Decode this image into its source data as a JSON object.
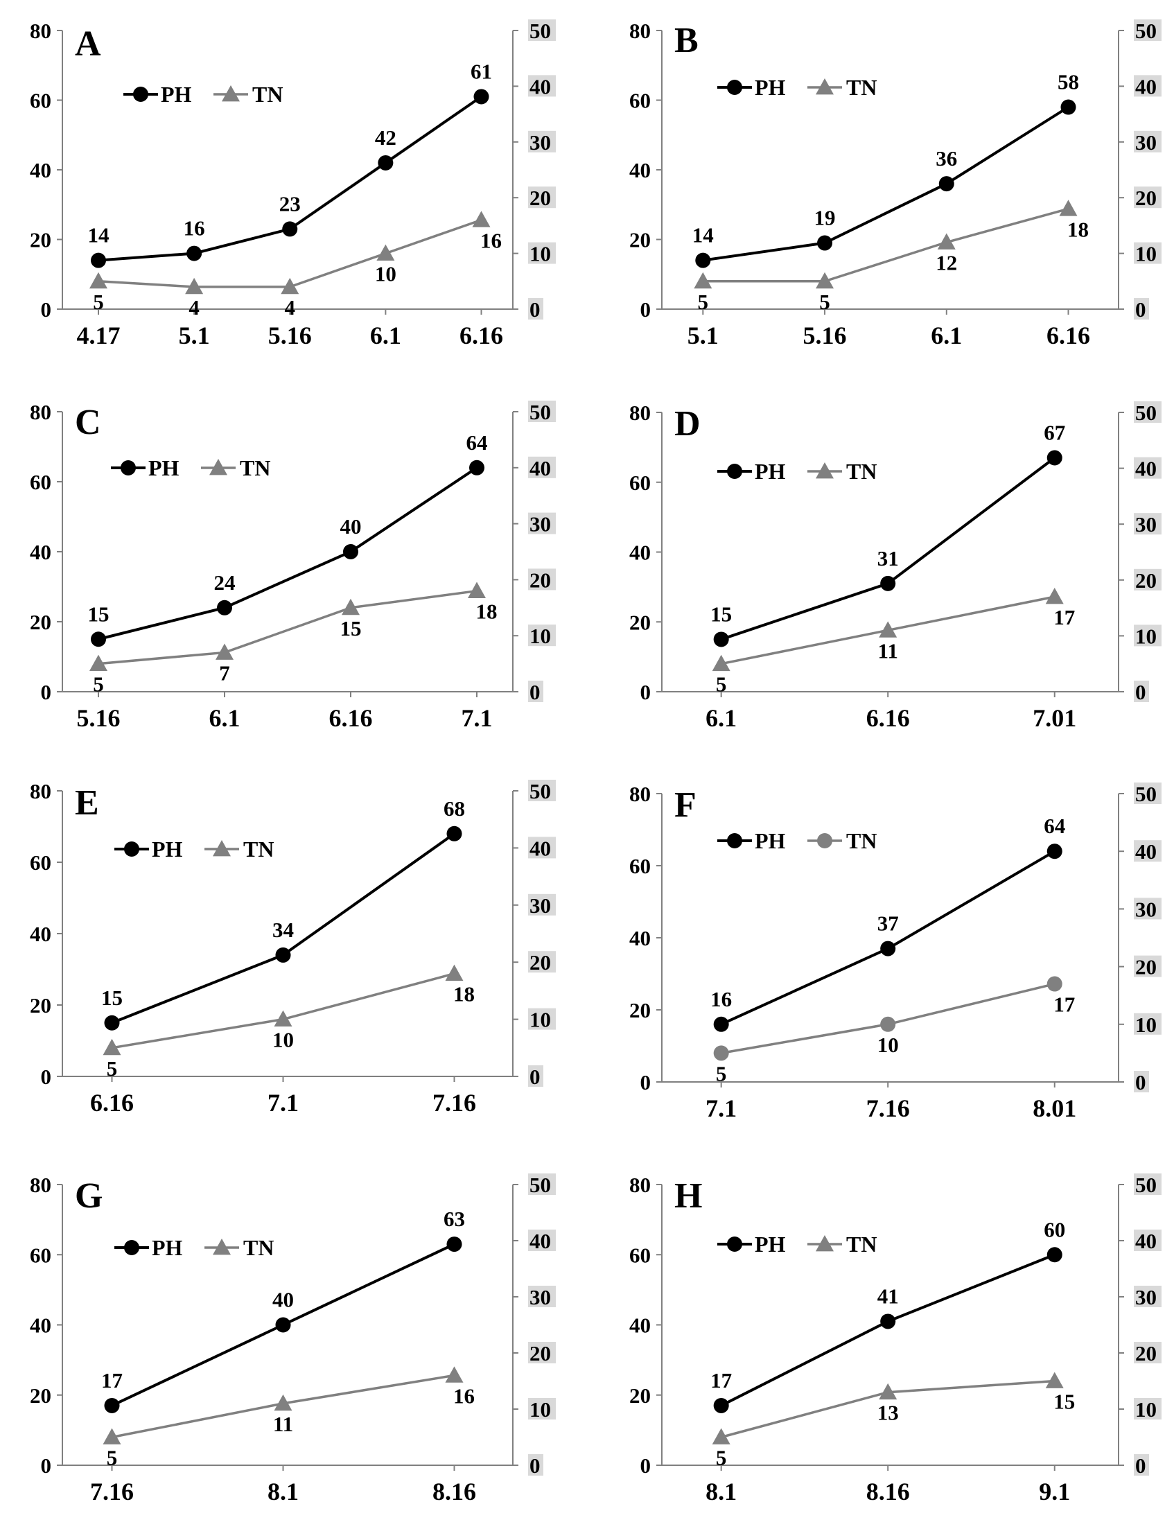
{
  "colors": {
    "ph": "#000000",
    "tn": "#808080",
    "right_tick_bg": "#d9d9d9",
    "axis": "#808080"
  },
  "legend": {
    "ph": "PH",
    "tn": "TN"
  },
  "chart_data": [
    {
      "type": "line",
      "panel": "A",
      "categories": [
        "4.17",
        "5.1",
        "5.16",
        "6.1",
        "6.16"
      ],
      "series": [
        {
          "name": "PH",
          "axis": "left",
          "marker": "circle",
          "values": [
            14,
            16,
            23,
            42,
            61
          ],
          "labels": [
            "14",
            "16",
            "23",
            "42",
            "61"
          ]
        },
        {
          "name": "TN",
          "axis": "right",
          "marker": "triangle",
          "values": [
            5,
            4,
            4,
            10,
            16
          ],
          "labels": [
            "5",
            "4",
            "4",
            "10",
            "16"
          ]
        }
      ],
      "ylim_left": [
        0,
        80
      ],
      "yticks_left": [
        "0",
        "20",
        "40",
        "60",
        "80"
      ],
      "ylim_right": [
        0,
        50
      ],
      "yticks_right": [
        "0",
        "10",
        "20",
        "30",
        "40",
        "50"
      ],
      "legend_position": "top-left"
    },
    {
      "type": "line",
      "panel": "B",
      "categories": [
        "5.1",
        "5.16",
        "6.1",
        "6.16"
      ],
      "series": [
        {
          "name": "PH",
          "axis": "left",
          "marker": "circle",
          "values": [
            14,
            19,
            36,
            58
          ],
          "labels": [
            "14",
            "19",
            "36",
            "58"
          ]
        },
        {
          "name": "TN",
          "axis": "right",
          "marker": "triangle",
          "values": [
            5,
            5,
            12,
            18
          ],
          "labels": [
            "5",
            "5",
            "12",
            "18"
          ]
        }
      ],
      "ylim_left": [
        0,
        80
      ],
      "yticks_left": [
        "0",
        "20",
        "40",
        "60",
        "80"
      ],
      "ylim_right": [
        0,
        50
      ],
      "yticks_right": [
        "0",
        "10",
        "20",
        "30",
        "40",
        "50"
      ],
      "legend_position": "top-left"
    },
    {
      "type": "line",
      "panel": "C",
      "categories": [
        "5.16",
        "6.1",
        "6.16",
        "7.1"
      ],
      "series": [
        {
          "name": "PH",
          "axis": "left",
          "marker": "circle",
          "values": [
            15,
            24,
            40,
            64
          ],
          "labels": [
            "15",
            "24",
            "40",
            "64"
          ]
        },
        {
          "name": "TN",
          "axis": "right",
          "marker": "triangle",
          "values": [
            5,
            7,
            15,
            18
          ],
          "labels": [
            "5",
            "7",
            "15",
            "18"
          ]
        }
      ],
      "ylim_left": [
        0,
        80
      ],
      "yticks_left": [
        "0",
        "20",
        "40",
        "60",
        "80"
      ],
      "ylim_right": [
        0,
        50
      ],
      "yticks_right": [
        "0",
        "10",
        "20",
        "30",
        "40",
        "50"
      ],
      "legend_position": "top-left"
    },
    {
      "type": "line",
      "panel": "D",
      "categories": [
        "6.1",
        "6.16",
        "7.01"
      ],
      "series": [
        {
          "name": "PH",
          "axis": "left",
          "marker": "circle",
          "values": [
            15,
            31,
            67
          ],
          "labels": [
            "15",
            "31",
            "67"
          ]
        },
        {
          "name": "TN",
          "axis": "right",
          "marker": "triangle",
          "values": [
            5,
            11,
            17
          ],
          "labels": [
            "5",
            "11",
            "17"
          ]
        }
      ],
      "ylim_left": [
        0,
        80
      ],
      "yticks_left": [
        "0",
        "20",
        "40",
        "60",
        "80"
      ],
      "ylim_right": [
        0,
        50
      ],
      "yticks_right": [
        "0",
        "10",
        "20",
        "30",
        "40",
        "50"
      ],
      "legend_position": "top-left"
    },
    {
      "type": "line",
      "panel": "E",
      "categories": [
        "6.16",
        "7.1",
        "7.16"
      ],
      "series": [
        {
          "name": "PH",
          "axis": "left",
          "marker": "circle",
          "values": [
            15,
            34,
            68
          ],
          "labels": [
            "15",
            "34",
            "68"
          ]
        },
        {
          "name": "TN",
          "axis": "right",
          "marker": "triangle",
          "values": [
            5,
            10,
            18
          ],
          "labels": [
            "5",
            "10",
            "18"
          ]
        }
      ],
      "ylim_left": [
        0,
        80
      ],
      "yticks_left": [
        "0",
        "20",
        "40",
        "60",
        "80"
      ],
      "ylim_right": [
        0,
        50
      ],
      "yticks_right": [
        "0",
        "10",
        "20",
        "30",
        "40",
        "50"
      ],
      "legend_position": "top-left"
    },
    {
      "type": "line",
      "panel": "F",
      "categories": [
        "7.1",
        "7.16",
        "8.01"
      ],
      "series": [
        {
          "name": "PH",
          "axis": "left",
          "marker": "circle",
          "values": [
            16,
            37,
            64
          ],
          "labels": [
            "16",
            "37",
            "64"
          ]
        },
        {
          "name": "TN",
          "axis": "right",
          "marker": "circle",
          "values": [
            5,
            10,
            17
          ],
          "labels": [
            "5",
            "10",
            "17"
          ]
        }
      ],
      "ylim_left": [
        0,
        80
      ],
      "yticks_left": [
        "0",
        "20",
        "40",
        "60",
        "80"
      ],
      "ylim_right": [
        0,
        50
      ],
      "yticks_right": [
        "0",
        "10",
        "20",
        "30",
        "40",
        "50"
      ],
      "legend_position": "top-left"
    },
    {
      "type": "line",
      "panel": "G",
      "categories": [
        "7.16",
        "8.1",
        "8.16"
      ],
      "series": [
        {
          "name": "PH",
          "axis": "left",
          "marker": "circle",
          "values": [
            17,
            40,
            63
          ],
          "labels": [
            "17",
            "40",
            "63"
          ]
        },
        {
          "name": "TN",
          "axis": "right",
          "marker": "triangle",
          "values": [
            5,
            11,
            16
          ],
          "labels": [
            "5",
            "11",
            "16"
          ]
        }
      ],
      "ylim_left": [
        0,
        80
      ],
      "yticks_left": [
        "0",
        "20",
        "40",
        "60",
        "80"
      ],
      "ylim_right": [
        0,
        50
      ],
      "yticks_right": [
        "0",
        "10",
        "20",
        "30",
        "40",
        "50"
      ],
      "legend_position": "top-left"
    },
    {
      "type": "line",
      "panel": "H",
      "categories": [
        "8.1",
        "8.16",
        "9.1"
      ],
      "series": [
        {
          "name": "PH",
          "axis": "left",
          "marker": "circle",
          "values": [
            17,
            41,
            60
          ],
          "labels": [
            "17",
            "41",
            "60"
          ]
        },
        {
          "name": "TN",
          "axis": "right",
          "marker": "triangle",
          "values": [
            5,
            13,
            15
          ],
          "labels": [
            "5",
            "13",
            "15"
          ]
        }
      ],
      "ylim_left": [
        0,
        80
      ],
      "yticks_left": [
        "0",
        "20",
        "40",
        "60",
        "80"
      ],
      "ylim_right": [
        0,
        50
      ],
      "yticks_right": [
        "0",
        "10",
        "20",
        "30",
        "40",
        "50"
      ],
      "legend_position": "top-left"
    }
  ]
}
